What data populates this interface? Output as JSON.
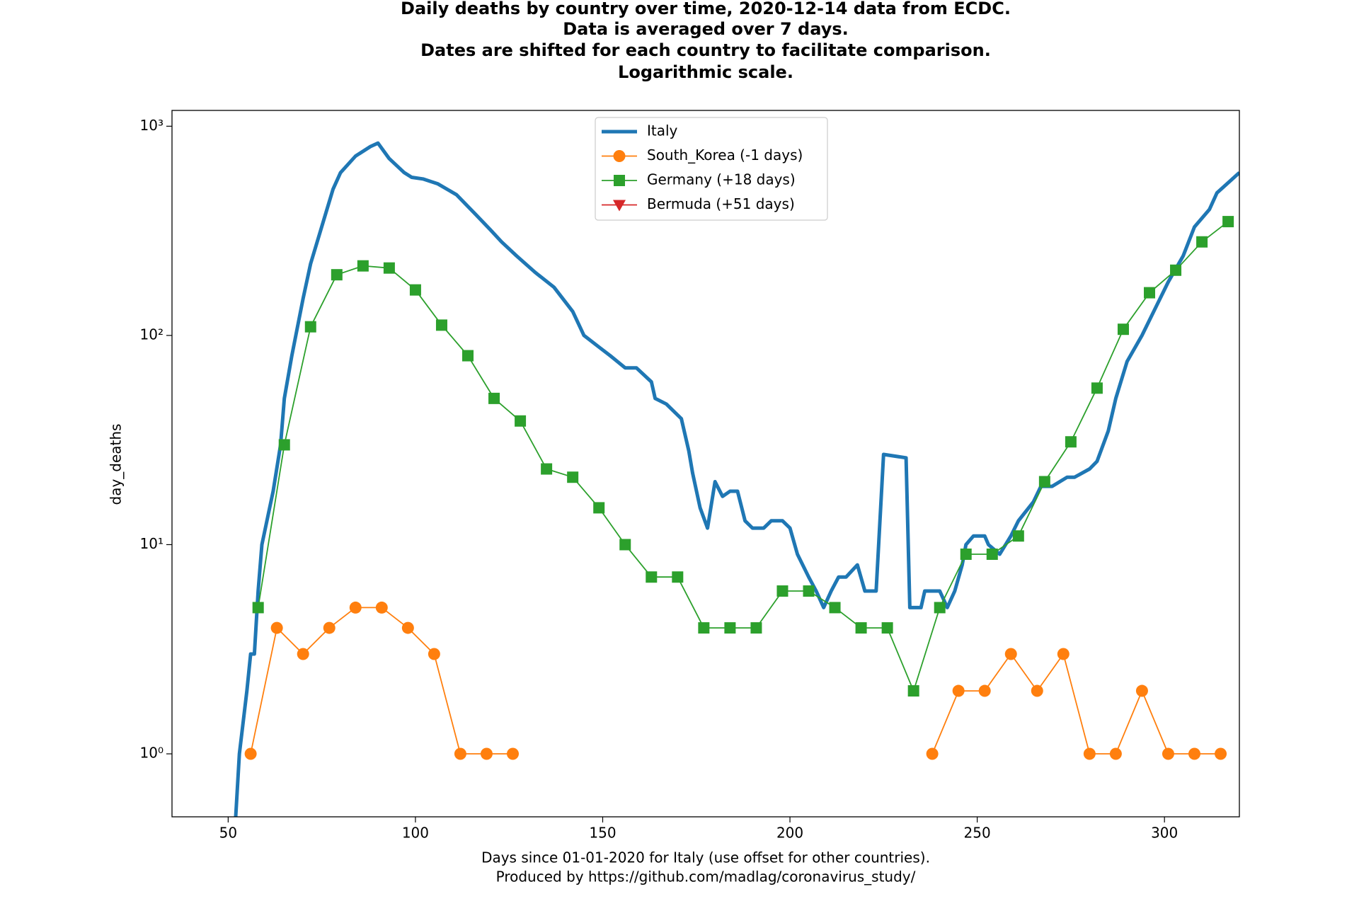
{
  "chart_data": {
    "type": "line",
    "title": [
      "Daily deaths by country over time, 2020-12-14 data from ECDC.",
      "Data is averaged over 7 days.",
      "Dates are shifted for each country to facilitate comparison.",
      "Logarithmic scale."
    ],
    "xlabel": [
      "Days since 01-01-2020 for Italy (use offset for other countries).",
      "Produced by https://github.com/madlag/coronavirus_study/"
    ],
    "ylabel": "day_deaths",
    "xlim": [
      35,
      320
    ],
    "xticks": [
      50,
      100,
      150,
      200,
      250,
      300
    ],
    "ylim": [
      0.5,
      1190
    ],
    "yscale": "log",
    "yticks": [
      {
        "value": 1,
        "label": "10⁰"
      },
      {
        "value": 10,
        "label": "10¹"
      },
      {
        "value": 100,
        "label": "10²"
      },
      {
        "value": 1000,
        "label": "10³"
      }
    ],
    "legend": "upper center",
    "series": [
      {
        "name": "Italy",
        "color": "#1f77b4",
        "line_width": 5,
        "marker": "none",
        "x": [
          52,
          53,
          55,
          56,
          57,
          58,
          59,
          62,
          64,
          65,
          67,
          70,
          72,
          76,
          78,
          80,
          84,
          88,
          90,
          93,
          97,
          99,
          102,
          106,
          111,
          116,
          120,
          123,
          127,
          132,
          137,
          142,
          145,
          149,
          152,
          156,
          159,
          163,
          164,
          167,
          171,
          173,
          174,
          176,
          178,
          180,
          182,
          184,
          186,
          188,
          190,
          193,
          195,
          198,
          200,
          202,
          205,
          207,
          209,
          211,
          213,
          215,
          218,
          220,
          223,
          225,
          231,
          232,
          235,
          236,
          240,
          242,
          244,
          246,
          247,
          249,
          252,
          253,
          256,
          259,
          261,
          265,
          267,
          270,
          274,
          276,
          280,
          282,
          285,
          287,
          290,
          294,
          298,
          301,
          305,
          308,
          312,
          314,
          320
        ],
        "values": [
          0.5,
          1,
          2,
          3,
          3,
          6,
          10,
          18,
          30,
          50,
          80,
          150,
          220,
          380,
          500,
          600,
          720,
          800,
          830,
          700,
          600,
          570,
          560,
          530,
          470,
          380,
          320,
          280,
          240,
          200,
          170,
          130,
          100,
          88,
          80,
          70,
          70,
          60,
          50,
          47,
          40,
          28,
          22,
          15,
          12,
          20,
          17,
          18,
          18,
          13,
          12,
          12,
          13,
          13,
          12,
          9,
          7,
          6,
          5,
          6,
          7,
          7,
          8,
          6,
          6,
          27,
          26,
          5,
          5,
          6,
          6,
          5,
          6,
          8,
          10,
          11,
          11,
          10,
          9,
          11,
          13,
          16,
          19,
          19,
          21,
          21,
          23,
          25,
          35,
          50,
          75,
          100,
          140,
          180,
          240,
          330,
          400,
          480,
          600
        ]
      },
      {
        "name": "South_Korea (-1 days)",
        "color": "#ff7f0e",
        "line_width": 1.8,
        "marker": "circle",
        "x": [
          56,
          63,
          70,
          77,
          84,
          91,
          98,
          105,
          112,
          119,
          126,
          133,
          238,
          245,
          252,
          259,
          266,
          273,
          280,
          287,
          294,
          301,
          308,
          315
        ],
        "values": [
          1,
          4,
          3,
          4,
          5,
          5,
          4,
          3,
          1,
          1,
          1,
          null,
          1,
          2,
          2,
          3,
          2,
          3,
          1,
          1,
          2,
          1,
          1,
          1
        ]
      },
      {
        "name": "Germany (+18 days)",
        "color": "#2ca02c",
        "line_width": 1.8,
        "marker": "square",
        "x": [
          58,
          65,
          72,
          79,
          86,
          93,
          100,
          107,
          114,
          121,
          128,
          135,
          142,
          149,
          156,
          163,
          170,
          177,
          184,
          191,
          198,
          205,
          212,
          219,
          226,
          233,
          240,
          247,
          254,
          261,
          268,
          275,
          282,
          289,
          296,
          303,
          310,
          317
        ],
        "values": [
          5,
          30,
          110,
          195,
          215,
          210,
          165,
          112,
          80,
          50,
          39,
          23,
          21,
          15,
          10,
          7,
          7,
          4,
          4,
          4,
          6,
          6,
          5,
          4,
          4,
          2,
          5,
          9,
          9,
          11,
          20,
          31,
          56,
          107,
          160,
          205,
          280,
          350
        ]
      },
      {
        "name": "Bermuda (+51 days)",
        "color": "#d62728",
        "line_width": 1.8,
        "marker": "triangle-down",
        "x": [],
        "values": []
      }
    ]
  }
}
